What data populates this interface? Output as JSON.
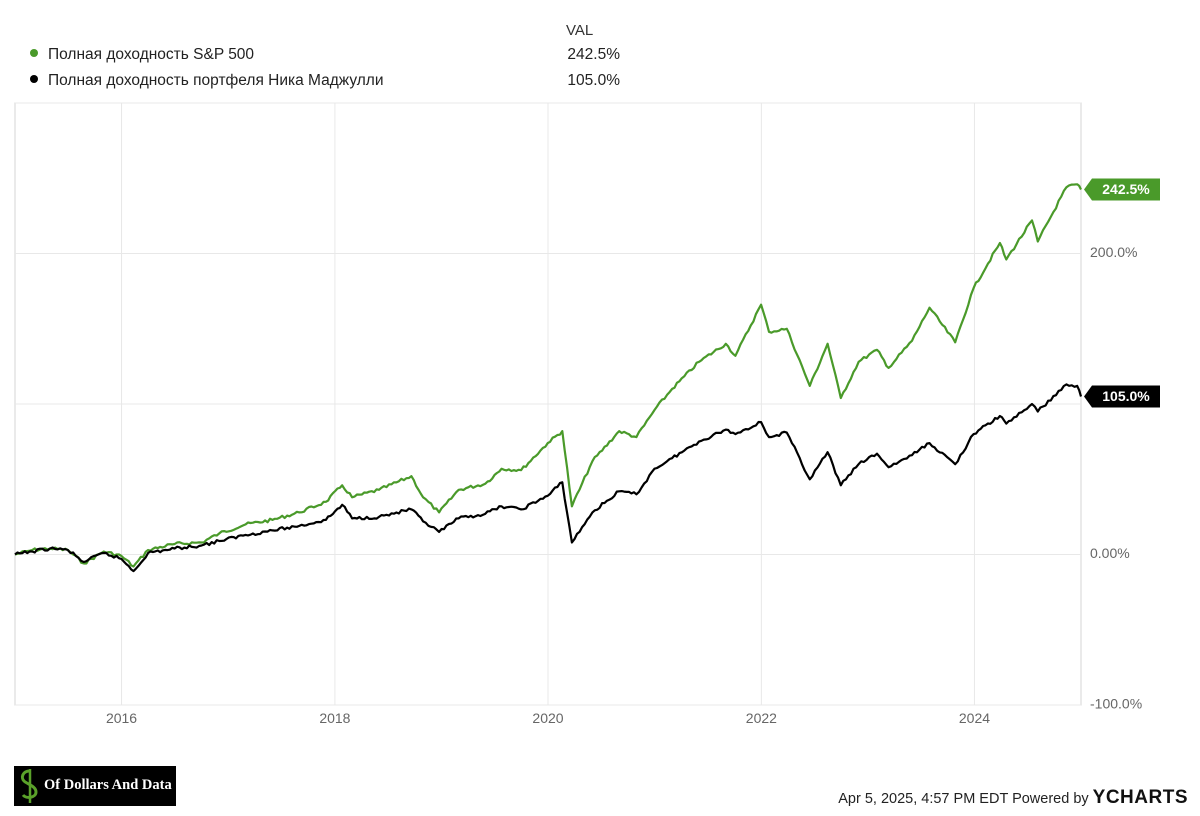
{
  "legend": {
    "column_header": "VAL",
    "items": [
      {
        "name": "Полная доходность S&P 500",
        "value": "242.5%",
        "color": "#4a9a2a"
      },
      {
        "name": "Полная доходность портфеля Ника Маджулли",
        "value": "105.0%",
        "color": "#000000"
      }
    ]
  },
  "chart_data": {
    "type": "line",
    "x_range": [
      "2015-01-01",
      "2024-12-31"
    ],
    "ylim": [
      -100,
      300
    ],
    "y_ticks": [
      {
        "value": 200,
        "label": "200.0%"
      },
      {
        "value": 0,
        "label": "0.00%"
      },
      {
        "value": -100,
        "label": "-100.0%"
      }
    ],
    "x_ticks": [
      "2016",
      "2018",
      "2020",
      "2022",
      "2024"
    ],
    "series": [
      {
        "name": "Полная доходность S&P 500",
        "color": "#4a9a2a",
        "end_label": "242.5%",
        "points": [
          [
            "2015-01-01",
            0
          ],
          [
            "2015-03-01",
            3
          ],
          [
            "2015-05-01",
            4
          ],
          [
            "2015-07-01",
            3
          ],
          [
            "2015-08-25",
            -6
          ],
          [
            "2015-11-01",
            2
          ],
          [
            "2016-01-01",
            -1
          ],
          [
            "2016-02-11",
            -8
          ],
          [
            "2016-04-01",
            3
          ],
          [
            "2016-07-01",
            7
          ],
          [
            "2016-10-01",
            8
          ],
          [
            "2016-12-01",
            14
          ],
          [
            "2017-03-01",
            20
          ],
          [
            "2017-06-01",
            23
          ],
          [
            "2017-09-01",
            28
          ],
          [
            "2017-12-01",
            35
          ],
          [
            "2018-01-26",
            46
          ],
          [
            "2018-03-01",
            38
          ],
          [
            "2018-06-01",
            43
          ],
          [
            "2018-09-20",
            52
          ],
          [
            "2018-10-30",
            38
          ],
          [
            "2018-12-24",
            28
          ],
          [
            "2019-03-01",
            43
          ],
          [
            "2019-05-31",
            47
          ],
          [
            "2019-07-26",
            57
          ],
          [
            "2019-10-01",
            56
          ],
          [
            "2019-12-31",
            74
          ],
          [
            "2020-02-19",
            82
          ],
          [
            "2020-03-23",
            32
          ],
          [
            "2020-06-01",
            62
          ],
          [
            "2020-09-01",
            82
          ],
          [
            "2020-10-30",
            78
          ],
          [
            "2020-12-31",
            96
          ],
          [
            "2021-03-01",
            110
          ],
          [
            "2021-06-01",
            128
          ],
          [
            "2021-09-01",
            140
          ],
          [
            "2021-10-04",
            132
          ],
          [
            "2021-12-31",
            166
          ],
          [
            "2022-01-27",
            148
          ],
          [
            "2022-03-29",
            150
          ],
          [
            "2022-06-16",
            112
          ],
          [
            "2022-08-16",
            140
          ],
          [
            "2022-09-30",
            104
          ],
          [
            "2022-11-30",
            128
          ],
          [
            "2023-02-01",
            136
          ],
          [
            "2023-03-13",
            124
          ],
          [
            "2023-06-01",
            142
          ],
          [
            "2023-07-31",
            164
          ],
          [
            "2023-10-27",
            141
          ],
          [
            "2023-12-29",
            177
          ],
          [
            "2024-03-28",
            207
          ],
          [
            "2024-04-19",
            196
          ],
          [
            "2024-07-16",
            222
          ],
          [
            "2024-08-05",
            208
          ],
          [
            "2024-11-11",
            244
          ],
          [
            "2024-12-18",
            246
          ],
          [
            "2024-12-31",
            242.5
          ]
        ]
      },
      {
        "name": "Полная доходность портфеля Ника Маджулли",
        "color": "#000000",
        "end_label": "105.0%",
        "points": [
          [
            "2015-01-01",
            0
          ],
          [
            "2015-03-01",
            2
          ],
          [
            "2015-05-01",
            4
          ],
          [
            "2015-07-01",
            3
          ],
          [
            "2015-08-25",
            -5
          ],
          [
            "2015-11-01",
            1
          ],
          [
            "2016-01-01",
            -3
          ],
          [
            "2016-02-11",
            -11
          ],
          [
            "2016-04-01",
            1
          ],
          [
            "2016-07-01",
            4
          ],
          [
            "2016-10-01",
            6
          ],
          [
            "2016-12-01",
            9
          ],
          [
            "2017-03-01",
            13
          ],
          [
            "2017-06-01",
            16
          ],
          [
            "2017-09-01",
            19
          ],
          [
            "2017-12-01",
            23
          ],
          [
            "2018-01-26",
            33
          ],
          [
            "2018-03-01",
            24
          ],
          [
            "2018-06-01",
            25
          ],
          [
            "2018-09-20",
            30
          ],
          [
            "2018-10-30",
            22
          ],
          [
            "2018-12-24",
            15
          ],
          [
            "2019-03-01",
            24
          ],
          [
            "2019-05-31",
            27
          ],
          [
            "2019-07-26",
            32
          ],
          [
            "2019-10-01",
            30
          ],
          [
            "2019-12-31",
            39
          ],
          [
            "2020-02-19",
            48
          ],
          [
            "2020-03-23",
            8
          ],
          [
            "2020-06-01",
            28
          ],
          [
            "2020-09-01",
            42
          ],
          [
            "2020-10-30",
            40
          ],
          [
            "2020-12-31",
            57
          ],
          [
            "2021-03-01",
            64
          ],
          [
            "2021-06-01",
            75
          ],
          [
            "2021-09-01",
            83
          ],
          [
            "2021-10-04",
            80
          ],
          [
            "2021-12-31",
            88
          ],
          [
            "2022-01-27",
            78
          ],
          [
            "2022-03-29",
            81
          ],
          [
            "2022-06-16",
            50
          ],
          [
            "2022-08-16",
            68
          ],
          [
            "2022-09-30",
            46
          ],
          [
            "2022-11-30",
            60
          ],
          [
            "2023-02-01",
            67
          ],
          [
            "2023-03-13",
            58
          ],
          [
            "2023-06-01",
            66
          ],
          [
            "2023-07-31",
            74
          ],
          [
            "2023-10-27",
            60
          ],
          [
            "2023-12-29",
            80
          ],
          [
            "2024-03-28",
            92
          ],
          [
            "2024-04-19",
            87
          ],
          [
            "2024-07-16",
            100
          ],
          [
            "2024-08-05",
            95
          ],
          [
            "2024-11-11",
            113
          ],
          [
            "2024-12-18",
            112
          ],
          [
            "2024-12-31",
            105
          ]
        ]
      }
    ]
  },
  "footer": {
    "logo_text": "Of Dollars And Data",
    "timestamp": "Apr 5, 2025, 4:57 PM EDT Powered by",
    "brand": "YCHARTS"
  }
}
